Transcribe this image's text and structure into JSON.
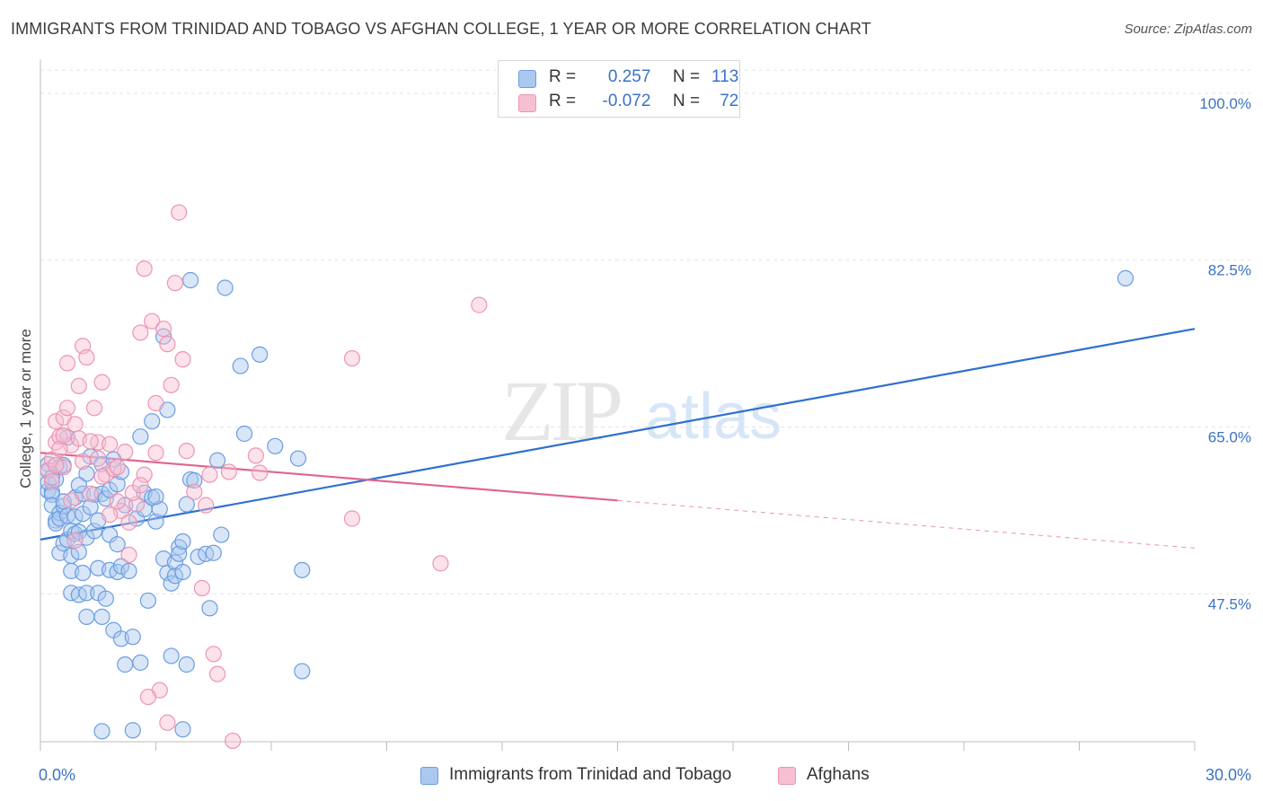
{
  "header": {
    "title": "IMMIGRANTS FROM TRINIDAD AND TOBAGO VS AFGHAN COLLEGE, 1 YEAR OR MORE CORRELATION CHART",
    "source": "Source: ZipAtlas.com"
  },
  "watermark": {
    "zip": "ZIP",
    "atlas": "atlas"
  },
  "legend_top": {
    "blue": {
      "r_label": "R =",
      "r_value": "0.257",
      "n_label": "N =",
      "n_value": "113"
    },
    "pink": {
      "r_label": "R =",
      "r_value": "-0.072",
      "n_label": "N =",
      "n_value": "72"
    }
  },
  "colors": {
    "blue_fill": "#aac8f0",
    "blue_stroke": "#6a9ee0",
    "blue_line": "#2f6fd0",
    "pink_fill": "#f7bfd2",
    "pink_stroke": "#ec95b3",
    "pink_line": "#e0668e",
    "accent_text": "#3b73c6",
    "grid": "#e3e3e3"
  },
  "chart_data": {
    "type": "scatter",
    "title": "IMMIGRANTS FROM TRINIDAD AND TOBAGO VS AFGHAN COLLEGE, 1 YEAR OR MORE CORRELATION CHART",
    "xlabel": "",
    "ylabel": "College, 1 year or more",
    "xlim": [
      0,
      30
    ],
    "ylim": [
      32,
      103
    ],
    "x_tick_labels": [
      "0.0%",
      "30.0%"
    ],
    "y_ticks": [
      47.5,
      65.0,
      82.5,
      100.0
    ],
    "y_tick_labels": [
      "47.5%",
      "65.0%",
      "82.5%",
      "100.0%"
    ],
    "grid": "horizontal dashed",
    "legend_position": "bottom",
    "series": [
      {
        "name": "Immigrants from Trinidad and Tobago",
        "color": "#6a9ee0",
        "trend": {
          "x": [
            0,
            30
          ],
          "y": [
            53.2,
            75.3
          ],
          "solid_until": 30
        },
        "points": [
          [
            0.2,
            61.1
          ],
          [
            0.2,
            60.4
          ],
          [
            0.2,
            58.3
          ],
          [
            0.2,
            59.2
          ],
          [
            0.3,
            58.2
          ],
          [
            0.3,
            57.9
          ],
          [
            0.3,
            56.8
          ],
          [
            0.4,
            59.5
          ],
          [
            0.4,
            55.2
          ],
          [
            0.4,
            54.9
          ],
          [
            0.5,
            60.8
          ],
          [
            0.5,
            56.0
          ],
          [
            0.5,
            55.4
          ],
          [
            0.5,
            51.8
          ],
          [
            0.6,
            61.0
          ],
          [
            0.6,
            56.7
          ],
          [
            0.6,
            52.8
          ],
          [
            0.7,
            63.9
          ],
          [
            0.7,
            53.2
          ],
          [
            0.7,
            55.7
          ],
          [
            0.8,
            54.1
          ],
          [
            0.8,
            51.5
          ],
          [
            0.8,
            49.9
          ],
          [
            0.8,
            47.6
          ],
          [
            0.9,
            57.6
          ],
          [
            0.9,
            55.6
          ],
          [
            0.9,
            53.8
          ],
          [
            1.0,
            54.0
          ],
          [
            1.0,
            51.9
          ],
          [
            1.0,
            47.4
          ],
          [
            1.1,
            58.0
          ],
          [
            1.1,
            55.9
          ],
          [
            1.1,
            49.7
          ],
          [
            1.2,
            60.1
          ],
          [
            1.2,
            53.4
          ],
          [
            1.2,
            47.6
          ],
          [
            1.2,
            45.1
          ],
          [
            1.3,
            61.9
          ],
          [
            1.4,
            57.9
          ],
          [
            1.4,
            54.1
          ],
          [
            1.5,
            55.2
          ],
          [
            1.5,
            50.2
          ],
          [
            1.5,
            47.6
          ],
          [
            1.6,
            58.0
          ],
          [
            1.6,
            45.1
          ],
          [
            1.6,
            61.1
          ],
          [
            1.7,
            57.5
          ],
          [
            1.7,
            47.0
          ],
          [
            1.8,
            58.4
          ],
          [
            1.8,
            53.7
          ],
          [
            1.8,
            50.0
          ],
          [
            1.9,
            61.6
          ],
          [
            1.9,
            43.7
          ],
          [
            2.0,
            59.0
          ],
          [
            2.0,
            52.7
          ],
          [
            2.0,
            49.8
          ],
          [
            2.1,
            60.3
          ],
          [
            2.1,
            50.4
          ],
          [
            2.1,
            42.8
          ],
          [
            2.2,
            40.1
          ],
          [
            2.3,
            49.9
          ],
          [
            2.4,
            43.0
          ],
          [
            2.5,
            55.4
          ],
          [
            2.6,
            40.3
          ],
          [
            2.6,
            64.0
          ],
          [
            2.7,
            56.4
          ],
          [
            2.7,
            58.1
          ],
          [
            2.8,
            46.8
          ],
          [
            2.9,
            57.6
          ],
          [
            2.9,
            65.6
          ],
          [
            3.0,
            55.1
          ],
          [
            3.1,
            56.4
          ],
          [
            3.2,
            74.5
          ],
          [
            3.2,
            51.2
          ],
          [
            3.3,
            66.8
          ],
          [
            3.3,
            49.7
          ],
          [
            3.4,
            48.6
          ],
          [
            3.4,
            41.0
          ],
          [
            3.5,
            50.8
          ],
          [
            3.5,
            49.4
          ],
          [
            3.6,
            52.4
          ],
          [
            3.6,
            51.7
          ],
          [
            3.7,
            53.0
          ],
          [
            3.7,
            49.8
          ],
          [
            3.8,
            56.9
          ],
          [
            3.8,
            40.1
          ],
          [
            3.9,
            80.4
          ],
          [
            3.9,
            59.5
          ],
          [
            4.0,
            59.4
          ],
          [
            4.1,
            51.4
          ],
          [
            4.3,
            51.7
          ],
          [
            4.4,
            46.0
          ],
          [
            4.5,
            51.8
          ],
          [
            4.6,
            61.5
          ],
          [
            4.7,
            53.7
          ],
          [
            4.8,
            79.6
          ],
          [
            5.2,
            71.4
          ],
          [
            5.3,
            64.3
          ],
          [
            5.7,
            72.6
          ],
          [
            6.1,
            63.0
          ],
          [
            6.7,
            61.7
          ],
          [
            6.8,
            50.0
          ],
          [
            6.8,
            39.4
          ],
          [
            2.4,
            33.2
          ],
          [
            3.7,
            33.3
          ],
          [
            1.6,
            33.1
          ],
          [
            28.2,
            80.6
          ],
          [
            0.3,
            59.7
          ],
          [
            0.6,
            57.2
          ],
          [
            1.0,
            58.9
          ],
          [
            1.3,
            56.6
          ],
          [
            2.2,
            56.8
          ],
          [
            3.0,
            57.7
          ]
        ]
      },
      {
        "name": "Afghans",
        "color": "#ec95b3",
        "trend": {
          "x": [
            0,
            30
          ],
          "y": [
            62.3,
            52.3
          ],
          "solid_until": 15
        },
        "points": [
          [
            0.2,
            60.5
          ],
          [
            0.3,
            61.6
          ],
          [
            0.3,
            59.3
          ],
          [
            0.4,
            65.6
          ],
          [
            0.4,
            63.4
          ],
          [
            0.5,
            64.0
          ],
          [
            0.6,
            66.0
          ],
          [
            0.6,
            60.8
          ],
          [
            0.7,
            71.7
          ],
          [
            0.7,
            67.0
          ],
          [
            0.8,
            63.1
          ],
          [
            0.8,
            57.3
          ],
          [
            0.9,
            65.3
          ],
          [
            1.0,
            69.3
          ],
          [
            1.0,
            63.8
          ],
          [
            1.1,
            73.5
          ],
          [
            1.1,
            61.4
          ],
          [
            1.2,
            72.3
          ],
          [
            1.3,
            58.0
          ],
          [
            1.4,
            67.0
          ],
          [
            1.5,
            63.4
          ],
          [
            1.6,
            69.7
          ],
          [
            1.7,
            60.0
          ],
          [
            1.8,
            63.2
          ],
          [
            1.9,
            60.6
          ],
          [
            2.0,
            60.8
          ],
          [
            2.1,
            56.2
          ],
          [
            2.2,
            62.4
          ],
          [
            2.3,
            55.0
          ],
          [
            2.3,
            51.6
          ],
          [
            2.5,
            56.9
          ],
          [
            2.6,
            74.9
          ],
          [
            2.7,
            81.6
          ],
          [
            2.7,
            60.0
          ],
          [
            2.9,
            76.1
          ],
          [
            3.0,
            62.3
          ],
          [
            3.0,
            67.5
          ],
          [
            3.1,
            37.4
          ],
          [
            3.2,
            75.3
          ],
          [
            3.3,
            73.7
          ],
          [
            3.4,
            69.4
          ],
          [
            3.5,
            80.1
          ],
          [
            3.6,
            87.5
          ],
          [
            3.7,
            72.1
          ],
          [
            3.8,
            62.5
          ],
          [
            4.0,
            58.2
          ],
          [
            4.2,
            48.1
          ],
          [
            4.3,
            56.8
          ],
          [
            4.4,
            60.0
          ],
          [
            4.5,
            41.2
          ],
          [
            4.6,
            39.1
          ],
          [
            4.9,
            60.3
          ],
          [
            5.0,
            32.1
          ],
          [
            5.6,
            62.0
          ],
          [
            5.7,
            60.2
          ],
          [
            3.3,
            34.0
          ],
          [
            2.8,
            36.7
          ],
          [
            8.1,
            72.2
          ],
          [
            8.1,
            55.4
          ],
          [
            10.4,
            50.7
          ],
          [
            11.4,
            77.8
          ],
          [
            1.5,
            61.7
          ],
          [
            0.9,
            53.1
          ],
          [
            1.8,
            55.8
          ],
          [
            2.4,
            58.1
          ],
          [
            0.5,
            62.7
          ],
          [
            1.3,
            63.5
          ],
          [
            2.0,
            57.2
          ],
          [
            0.6,
            64.1
          ],
          [
            1.6,
            59.8
          ],
          [
            2.6,
            58.9
          ],
          [
            0.4,
            61.0
          ]
        ]
      }
    ]
  },
  "bottom_legend": {
    "blue_label": "Immigrants from Trinidad and Tobago",
    "pink_label": "Afghans"
  }
}
